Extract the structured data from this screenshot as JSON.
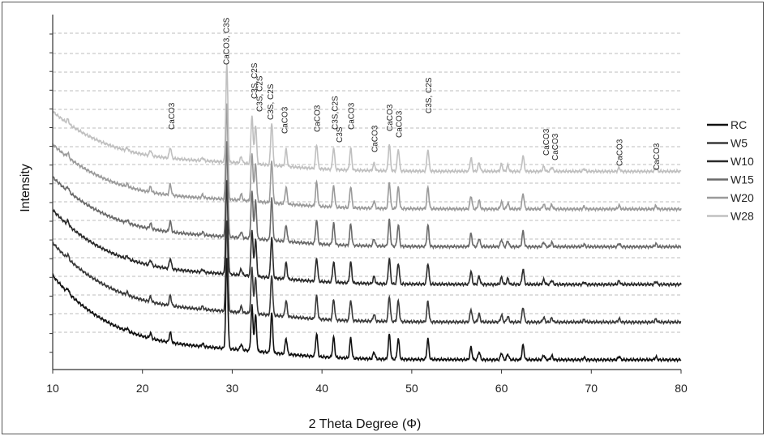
{
  "chart_data": {
    "type": "line",
    "title": "",
    "xlabel": "2 Theta Degree (Φ)",
    "ylabel": "Intensity",
    "xlim": [
      10,
      80
    ],
    "x_ticks": [
      10,
      20,
      30,
      40,
      50,
      60,
      70,
      80
    ],
    "grid": "horizontal dashed",
    "legend_position": "right",
    "series": [
      {
        "name": "RC",
        "color": "#111111",
        "offset": 0
      },
      {
        "name": "W5",
        "color": "#3a3a3a",
        "offset": 1
      },
      {
        "name": "W10",
        "color": "#2a2a2a",
        "offset": 2
      },
      {
        "name": "W15",
        "color": "#6a6a6a",
        "offset": 3
      },
      {
        "name": "W20",
        "color": "#9a9a9a",
        "offset": 4
      },
      {
        "name": "W28",
        "color": "#c0c0c0",
        "offset": 5
      }
    ],
    "peaks": [
      {
        "x": 11.7,
        "h": 0.35
      },
      {
        "x": 18.3,
        "h": 0.25
      },
      {
        "x": 20.9,
        "h": 0.45
      },
      {
        "x": 23.1,
        "h": 0.9
      },
      {
        "x": 26.7,
        "h": 0.25
      },
      {
        "x": 29.4,
        "h": 8.0
      },
      {
        "x": 31.0,
        "h": 0.5
      },
      {
        "x": 32.2,
        "h": 4.0
      },
      {
        "x": 32.6,
        "h": 3.2
      },
      {
        "x": 34.4,
        "h": 3.5
      },
      {
        "x": 36.0,
        "h": 1.4
      },
      {
        "x": 39.4,
        "h": 2.0
      },
      {
        "x": 41.3,
        "h": 1.8
      },
      {
        "x": 43.2,
        "h": 1.8
      },
      {
        "x": 45.8,
        "h": 0.6
      },
      {
        "x": 47.5,
        "h": 2.2
      },
      {
        "x": 48.5,
        "h": 1.8
      },
      {
        "x": 51.8,
        "h": 1.8
      },
      {
        "x": 56.6,
        "h": 1.1
      },
      {
        "x": 57.5,
        "h": 0.7
      },
      {
        "x": 60.0,
        "h": 0.6
      },
      {
        "x": 60.7,
        "h": 0.5
      },
      {
        "x": 62.4,
        "h": 1.3
      },
      {
        "x": 64.7,
        "h": 0.4
      },
      {
        "x": 65.6,
        "h": 0.35
      },
      {
        "x": 69.2,
        "h": 0.2
      },
      {
        "x": 73.1,
        "h": 0.3
      },
      {
        "x": 77.2,
        "h": 0.25
      }
    ],
    "annotations": [
      {
        "x": 23.2,
        "text": "CaCO3",
        "level": 0
      },
      {
        "x": 29.3,
        "text": "CaCO3, C3S",
        "level": 1
      },
      {
        "x": 32.4,
        "text": "C3S, C2S",
        "level": 2
      },
      {
        "x": 33.0,
        "text": "C3S, C2S",
        "level": 3
      },
      {
        "x": 34.2,
        "text": "C3S, C2S",
        "level": 4
      },
      {
        "x": 35.8,
        "text": "CaCO3",
        "level": 5
      },
      {
        "x": 39.4,
        "text": "CaCO3",
        "level": 6
      },
      {
        "x": 41.4,
        "text": "C3S,C2S",
        "level": 7
      },
      {
        "x": 41.9,
        "text": "C3S",
        "level": 8
      },
      {
        "x": 43.2,
        "text": "CaCO3",
        "level": 9
      },
      {
        "x": 45.8,
        "text": "CaCO3",
        "level": 10
      },
      {
        "x": 47.5,
        "text": "CaCO3",
        "level": 11
      },
      {
        "x": 48.5,
        "text": "CaCO3",
        "level": 12
      },
      {
        "x": 51.8,
        "text": "C3S, C2S",
        "level": 13
      },
      {
        "x": 64.9,
        "text": "CaCO3",
        "level": 14
      },
      {
        "x": 65.9,
        "text": "CaCO3",
        "level": 15
      },
      {
        "x": 73.1,
        "text": "CaCO3",
        "level": 16
      },
      {
        "x": 77.2,
        "text": "CaCO3",
        "level": 17
      }
    ]
  }
}
